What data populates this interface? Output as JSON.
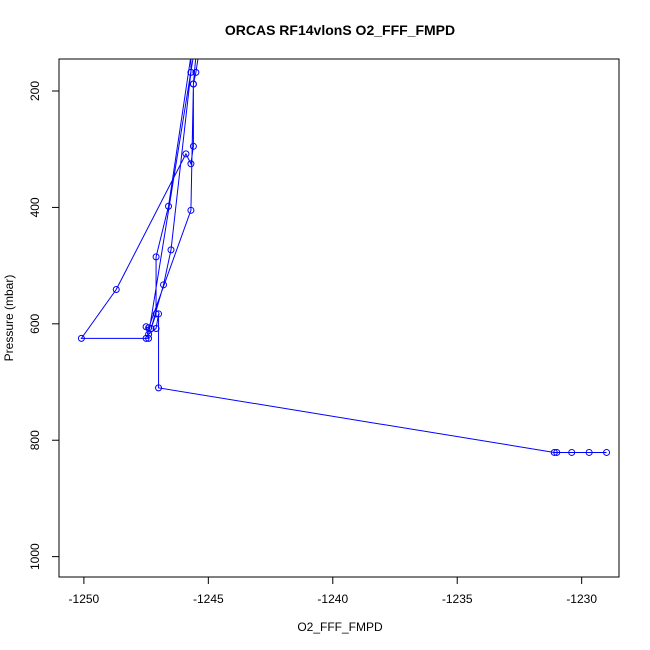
{
  "chart_data": {
    "type": "line",
    "title": "ORCAS RF14vlonS O2_FFF_FMPD",
    "xlabel": "O2_FFF_FMPD",
    "ylabel": "Pressure (mbar)",
    "xlim": [
      -1251,
      -1228.5
    ],
    "ylim": [
      1035,
      145
    ],
    "y_reversed": true,
    "x_ticks": [
      -1250,
      -1245,
      -1240,
      -1235,
      -1230
    ],
    "y_ticks": [
      200,
      400,
      600,
      800,
      1000
    ],
    "grid": false,
    "legend": "none",
    "series": [
      {
        "color": "#0000ff",
        "marker": "open-circle",
        "points": [
          [
            -1245.4,
            140
          ],
          [
            -1245.5,
            168
          ],
          [
            -1245.6,
            188
          ],
          [
            -1245.6,
            295
          ],
          [
            -1245.7,
            325
          ],
          [
            -1245.9,
            308
          ],
          [
            -1248.7,
            541
          ],
          [
            -1250.1,
            625
          ],
          [
            -1247.5,
            625
          ],
          [
            -1247.4,
            625
          ],
          [
            -1247.5,
            605
          ],
          [
            -1247.4,
            607
          ],
          [
            -1245.7,
            405
          ],
          [
            -1245.6,
            188
          ],
          [
            -1245.5,
            140
          ],
          [
            -1245.7,
            140
          ],
          [
            -1246.6,
            398
          ],
          [
            -1247.1,
            485
          ],
          [
            -1247.1,
            583
          ],
          [
            -1247.3,
            608
          ],
          [
            -1246.8,
            533
          ],
          [
            -1246.5,
            473
          ],
          [
            -1245.7,
            168
          ],
          [
            -1245.7,
            140
          ],
          [
            -1245.6,
            140
          ],
          [
            -1247.4,
            618
          ],
          [
            -1247.1,
            608
          ],
          [
            -1247.0,
            583
          ],
          [
            -1247.0,
            710
          ],
          [
            -1231.1,
            821
          ],
          [
            -1231.0,
            821
          ],
          [
            -1230.4,
            821
          ],
          [
            -1229.7,
            821
          ],
          [
            -1229.0,
            821
          ]
        ]
      }
    ]
  }
}
